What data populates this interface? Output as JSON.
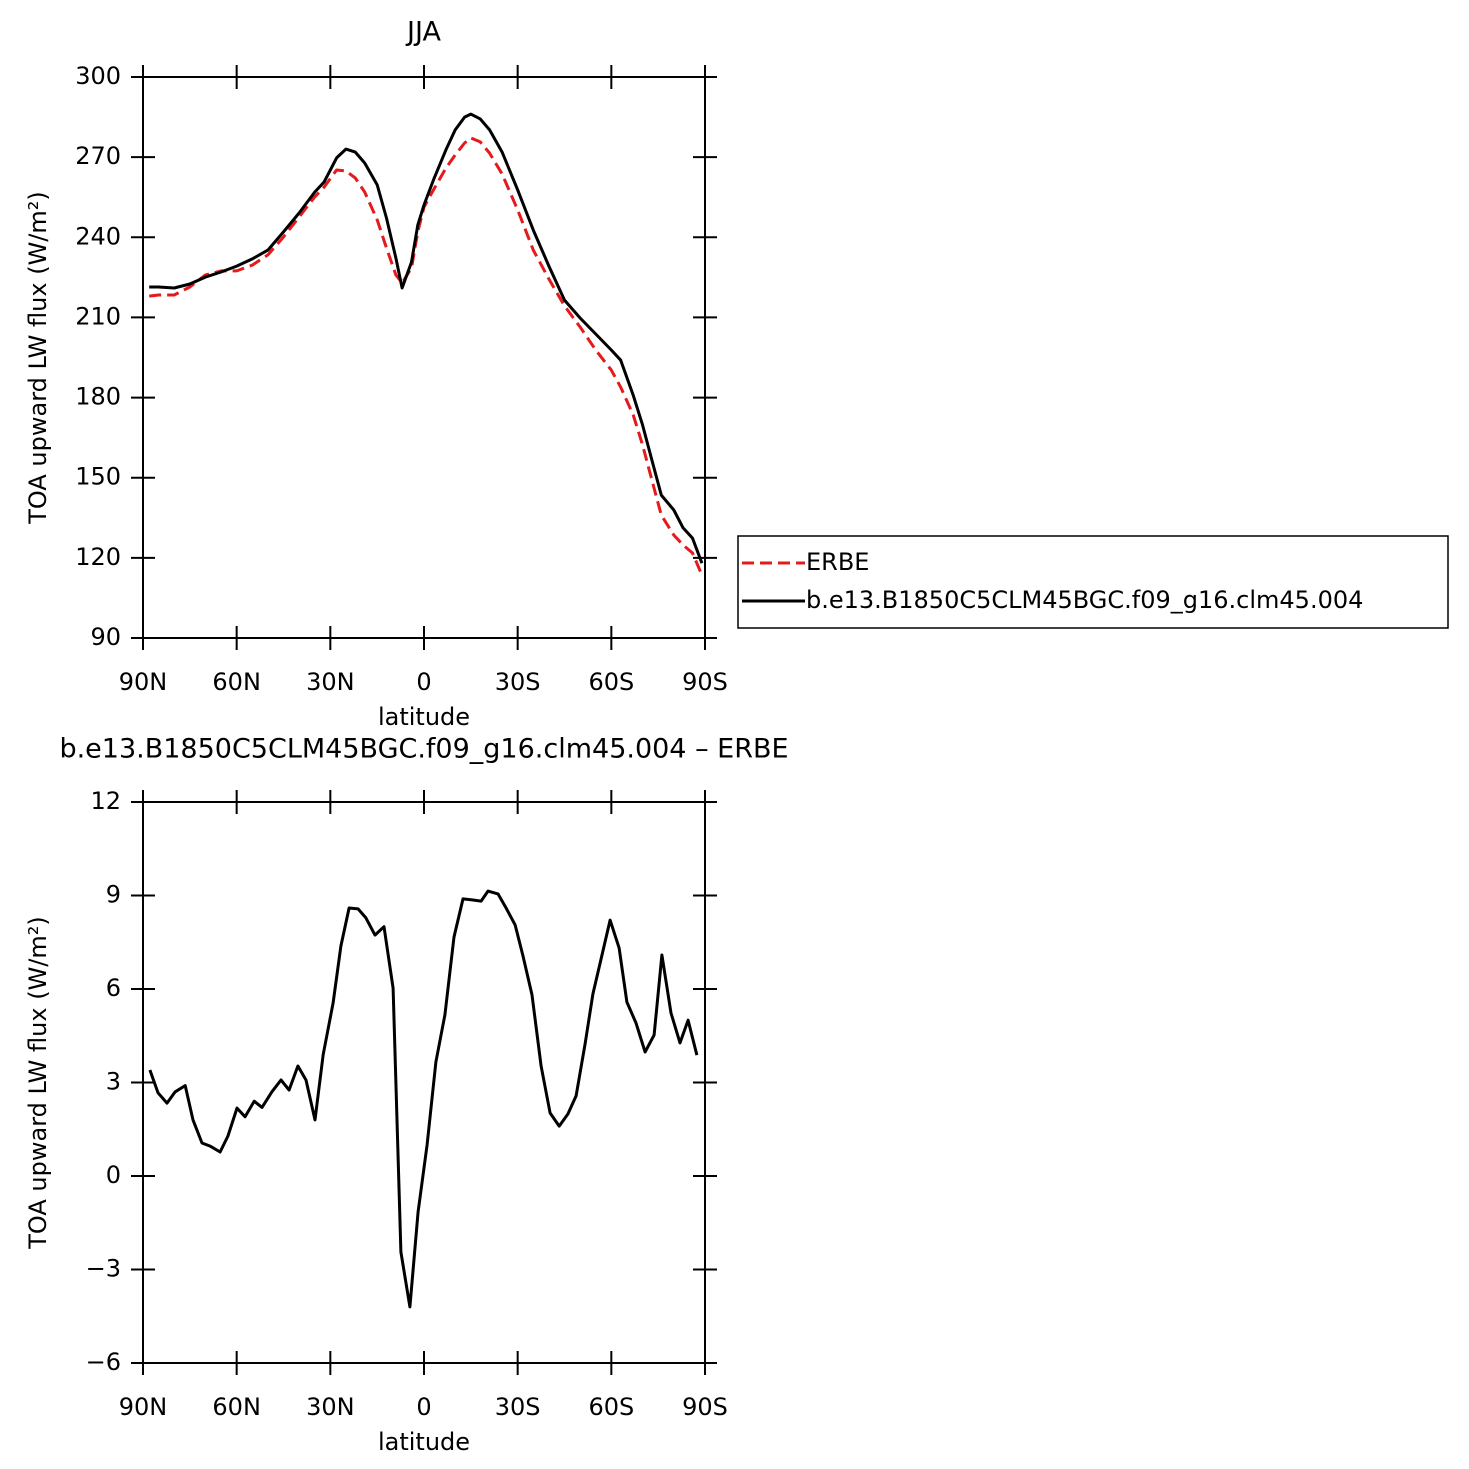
{
  "chart_data": [
    {
      "type": "line",
      "title": "JJA",
      "x_label": "latitude",
      "y_label": "TOA upward LW flux (W/m²)",
      "x": [
        88,
        85,
        80,
        75,
        70,
        65,
        60,
        55,
        50,
        45,
        40,
        35,
        32,
        28,
        25,
        22,
        19,
        15,
        12,
        9,
        7,
        4,
        2,
        0,
        -3,
        -7,
        -10,
        -13,
        -15,
        -18,
        -21,
        -25,
        -30,
        -35,
        -40,
        -45,
        -50,
        -55,
        -60,
        -63,
        -67,
        -70,
        -73,
        -76,
        -80,
        -83,
        -86,
        -89
      ],
      "series": [
        {
          "name": "ERBE",
          "color": "#e41a1c",
          "dash": true,
          "values": [
            218.0,
            218.4,
            218.4,
            221.4,
            225.9,
            227.4,
            227.4,
            229.6,
            233.4,
            240.1,
            247.6,
            255.1,
            258.8,
            265.2,
            264.8,
            262.2,
            256.9,
            246.5,
            236.0,
            225.9,
            222.9,
            228.5,
            242.0,
            251.3,
            257.7,
            265.9,
            270.8,
            275.3,
            277.2,
            275.7,
            271.5,
            263.7,
            250.2,
            235.2,
            224.4,
            214.3,
            206.4,
            197.8,
            190.3,
            183.9,
            173.5,
            162.2,
            149.1,
            136.0,
            128.5,
            124.8,
            121.8,
            113.6
          ]
        },
        {
          "name": "b.e13.B1850C5CLM45BGC.f09_g16.clm45.004",
          "color": "#000000",
          "dash": false,
          "values": [
            221.4,
            221.4,
            221.0,
            222.5,
            225.1,
            227.0,
            229.2,
            231.9,
            235.2,
            242.0,
            249.1,
            256.9,
            260.7,
            269.7,
            273.0,
            271.9,
            267.8,
            259.6,
            247.2,
            232.2,
            221.0,
            230.7,
            244.6,
            252.1,
            261.4,
            272.7,
            280.2,
            285.0,
            286.1,
            284.3,
            280.2,
            271.9,
            257.7,
            242.7,
            229.2,
            216.5,
            209.8,
            203.8,
            197.8,
            194.0,
            180.9,
            169.7,
            156.6,
            143.5,
            137.9,
            131.2,
            127.4,
            118.0
          ]
        }
      ],
      "xlim": [
        90,
        -90
      ],
      "xticks": [
        {
          "value": 90,
          "label": "90N"
        },
        {
          "value": 60,
          "label": "60N"
        },
        {
          "value": 30,
          "label": "30N"
        },
        0,
        {
          "value": -30,
          "label": "30S"
        },
        {
          "value": -60,
          "label": "60S"
        },
        {
          "value": -90,
          "label": "90S"
        }
      ],
      "ylim": [
        90,
        300
      ],
      "yticks": [
        90,
        120,
        150,
        180,
        210,
        240,
        270,
        300
      ],
      "legend": "right"
    },
    {
      "type": "line",
      "title": "b.e13.B1850C5CLM45BGC.f09_g16.clm45.004 – ERBE",
      "x_label": "latitude",
      "y_label": "TOA upward LW flux (W/m²)",
      "x": [
        87.8,
        85.2,
        82.3,
        79.7,
        76.5,
        74.0,
        71.1,
        68.5,
        65.3,
        62.8,
        59.9,
        57.3,
        54.4,
        51.9,
        48.7,
        45.8,
        43.2,
        40.4,
        37.8,
        34.9,
        32.3,
        29.1,
        26.6,
        24.0,
        21.1,
        18.6,
        15.7,
        12.8,
        9.9,
        7.4,
        4.5,
        1.9,
        -1.0,
        -3.8,
        -6.7,
        -9.6,
        -12.5,
        -15.4,
        -18.3,
        -20.5,
        -23.7,
        -26.3,
        -29.2,
        -31.7,
        -34.6,
        -37.5,
        -40.4,
        -43.3,
        -46.1,
        -48.7,
        -51.6,
        -54.1,
        -57.0,
        -59.6,
        -62.5,
        -65.0,
        -67.9,
        -70.8,
        -73.7,
        -76.2,
        -79.1,
        -82.0,
        -84.6,
        -87.4
      ],
      "series": [
        {
          "color": "#000000",
          "dash": false,
          "values": [
            3.4,
            2.67,
            2.34,
            2.7,
            2.9,
            1.8,
            1.06,
            0.96,
            0.77,
            1.28,
            2.18,
            1.9,
            2.4,
            2.2,
            2.7,
            3.08,
            2.76,
            3.53,
            3.08,
            1.8,
            3.9,
            5.55,
            7.38,
            8.6,
            8.57,
            8.28,
            7.73,
            8.0,
            6.03,
            -2.44,
            -4.2,
            -1.15,
            1.0,
            3.66,
            5.17,
            7.67,
            8.89,
            8.86,
            8.82,
            9.14,
            9.05,
            8.6,
            8.05,
            7.06,
            5.81,
            3.53,
            2.02,
            1.6,
            1.99,
            2.57,
            4.24,
            5.84,
            7.09,
            8.21,
            7.32,
            5.58,
            4.91,
            3.98,
            4.52,
            7.09,
            5.23,
            4.27,
            5.0,
            3.88
          ]
        }
      ],
      "xlim": [
        90,
        -90
      ],
      "xticks": [
        {
          "value": 90,
          "label": "90N"
        },
        {
          "value": 60,
          "label": "60N"
        },
        {
          "value": 30,
          "label": "30N"
        },
        0,
        {
          "value": -30,
          "label": "30S"
        },
        {
          "value": -60,
          "label": "60S"
        },
        {
          "value": -90,
          "label": "90S"
        }
      ],
      "ylim": [
        -6,
        12
      ],
      "yticks": [
        {
          "value": -6,
          "label": "−6"
        },
        {
          "value": -3,
          "label": "−3"
        },
        0,
        3,
        6,
        9,
        12
      ]
    }
  ]
}
